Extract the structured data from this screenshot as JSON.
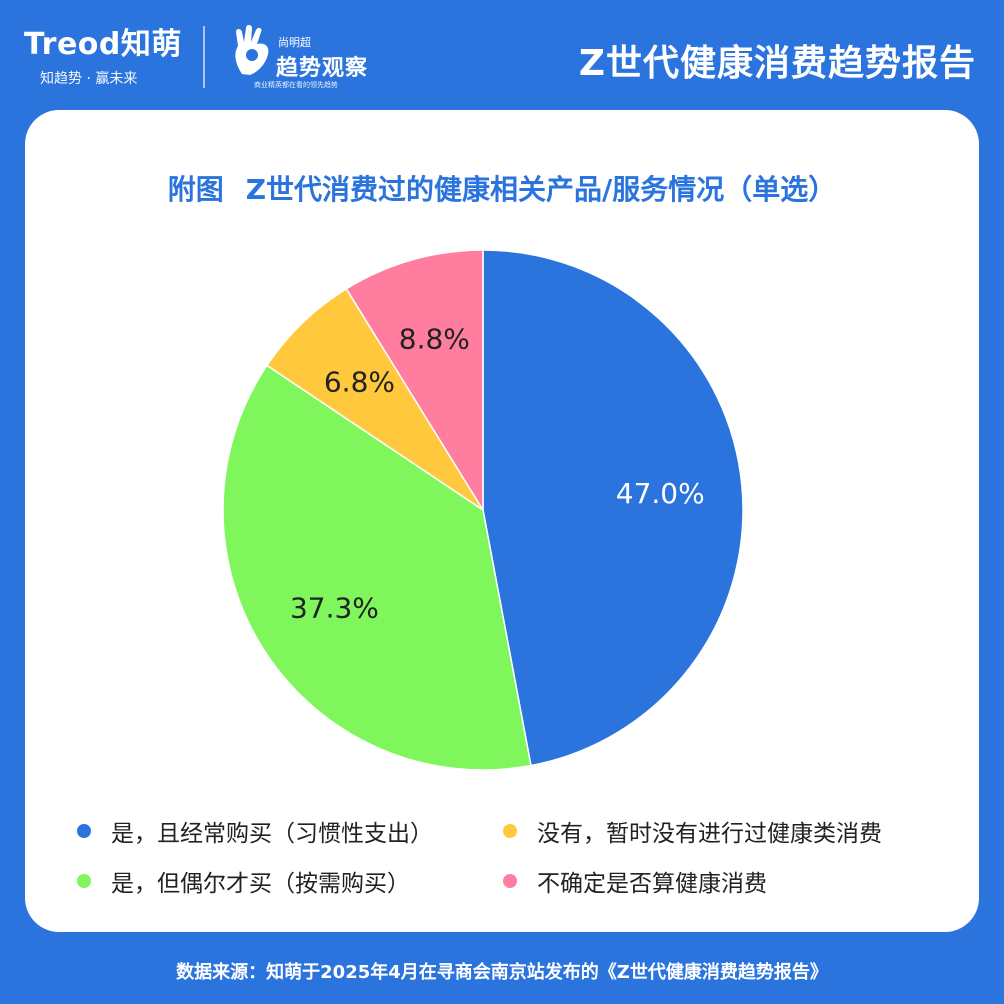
{
  "header": {
    "brand_main": "Treod知萌",
    "brand_sub": "知趋势 · 赢未来",
    "logo2_top": "尚明超",
    "logo2_main": "趋势观察",
    "logo2_slogan": "商业精英都在看的领先趋势",
    "report_title": "Z世代健康消费趋势报告"
  },
  "chart_data": {
    "type": "pie",
    "title_prefix": "附图",
    "title": "Z世代消费过的健康相关产品/服务情况（单选）",
    "slices": [
      {
        "label": "是，且经常购买（习惯性支出）",
        "value": 47.0,
        "display": "47.0%",
        "color": "#2b74dd",
        "text_color": "#ffffff"
      },
      {
        "label": "是，但偶尔才买（按需购买）",
        "value": 37.3,
        "display": "37.3%",
        "color": "#7ff75c",
        "text_color": "#222222"
      },
      {
        "label": "没有，暂时没有进行过健康类消费",
        "value": 6.8,
        "display": "6.8%",
        "color": "#ffc83d",
        "text_color": "#222222"
      },
      {
        "label": "不确定是否算健康消费",
        "value": 8.8,
        "display": "8.8%",
        "color": "#ff7ea0",
        "text_color": "#222222"
      }
    ],
    "legend_order": [
      0,
      2,
      1,
      3
    ],
    "legend_placement": "bottom"
  },
  "footer": {
    "source": "数据来源：知萌于2025年4月在寻商会南京站发布的《Z世代健康消费趋势报告》"
  }
}
